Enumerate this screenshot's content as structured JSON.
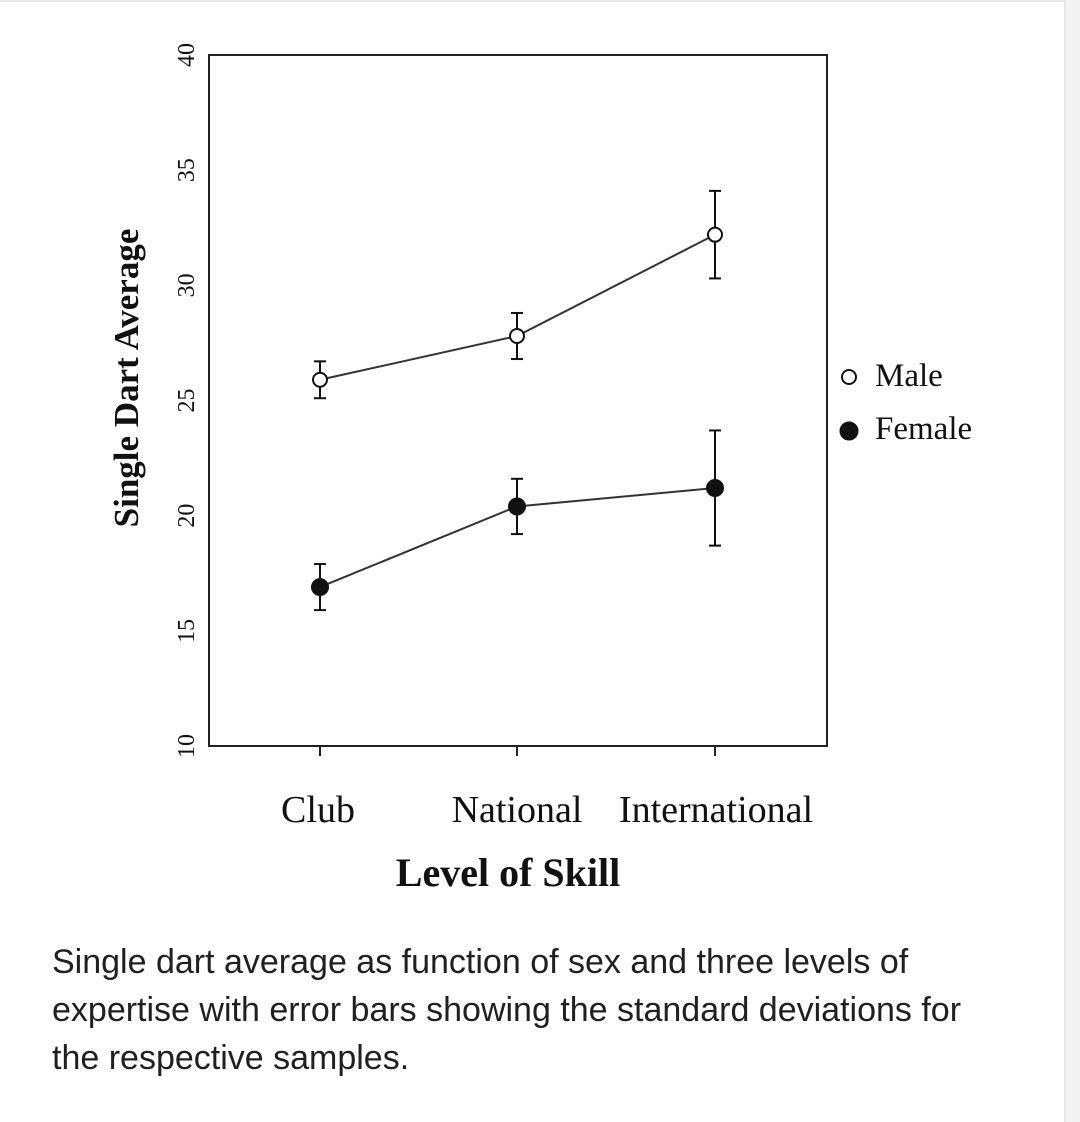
{
  "chart_data": {
    "type": "line",
    "title": "",
    "xlabel": "Level of Skill",
    "ylabel": "Single Dart Average",
    "categories": [
      "Club",
      "National",
      "International"
    ],
    "ylim": [
      10,
      40
    ],
    "yticks": [
      "10",
      "15",
      "20",
      "25",
      "30",
      "35",
      "40"
    ],
    "grid": false,
    "legend_position": "right",
    "series": [
      {
        "name": "Male",
        "marker": "open-circle",
        "symbol": "o",
        "values": [
          25.9,
          27.8,
          32.2
        ],
        "sd": [
          0.8,
          1.0,
          1.9
        ]
      },
      {
        "name": "Female",
        "marker": "filled-circle",
        "symbol": "●",
        "values": [
          16.9,
          20.4,
          21.2
        ],
        "sd": [
          1.0,
          1.2,
          2.5
        ]
      }
    ],
    "colors": {
      "line": "#333333",
      "axis": "#222222",
      "text": "#111111"
    }
  },
  "caption": "Single dart average as function of sex and three levels of expertise with error bars showing the standard deviations for the respective samples."
}
